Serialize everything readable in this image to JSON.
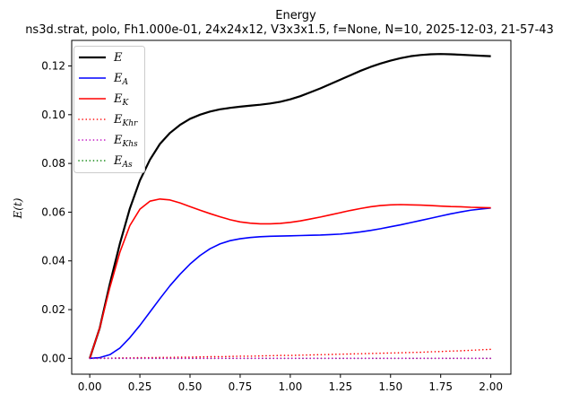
{
  "chart_data": {
    "type": "line",
    "title": "Energy",
    "subtitle": "ns3d.strat, polo, Fh1.000e-01, 24x24x12, V3x3x1.5, f=None, N=10, 2025-12-03, 21-57-43",
    "xlabel": "",
    "ylabel": "E(t)",
    "xlim": [
      -0.09,
      2.1
    ],
    "ylim": [
      -0.0065,
      0.1305
    ],
    "xticks": [
      "0.00",
      "0.25",
      "0.50",
      "0.75",
      "1.00",
      "1.25",
      "1.50",
      "1.75",
      "2.00"
    ],
    "xtick_values": [
      0,
      0.25,
      0.5,
      0.75,
      1.0,
      1.25,
      1.5,
      1.75,
      2.0
    ],
    "yticks": [
      "0.00",
      "0.02",
      "0.04",
      "0.06",
      "0.08",
      "0.10",
      "0.12"
    ],
    "ytick_values": [
      0,
      0.02,
      0.04,
      0.06,
      0.08,
      0.1,
      0.12
    ],
    "grid": false,
    "legend_position": "upper-left",
    "x": [
      0,
      0.05,
      0.1,
      0.15,
      0.2,
      0.25,
      0.3,
      0.35,
      0.4,
      0.45,
      0.5,
      0.55,
      0.6,
      0.65,
      0.7,
      0.75,
      0.8,
      0.85,
      0.9,
      0.95,
      1.0,
      1.05,
      1.1,
      1.15,
      1.2,
      1.25,
      1.3,
      1.35,
      1.4,
      1.45,
      1.5,
      1.55,
      1.6,
      1.65,
      1.7,
      1.75,
      1.8,
      1.85,
      1.9,
      1.95,
      2.0
    ],
    "series": [
      {
        "name": "E",
        "sub": "",
        "color": "#000000",
        "style": "solid",
        "width": 2.2,
        "values": [
          0,
          0.0125,
          0.0305,
          0.047,
          0.0615,
          0.073,
          0.0815,
          0.088,
          0.0925,
          0.0958,
          0.0983,
          0.1,
          0.1013,
          0.1022,
          0.1028,
          0.1033,
          0.1037,
          0.1041,
          0.1046,
          0.1053,
          0.1063,
          0.1076,
          0.1092,
          0.1108,
          0.1126,
          0.1144,
          0.1162,
          0.118,
          0.1196,
          0.121,
          0.1222,
          0.1232,
          0.124,
          0.1245,
          0.1248,
          0.1249,
          0.1248,
          0.1246,
          0.1244,
          0.1242,
          0.124
        ]
      },
      {
        "name": "E",
        "sub": "A",
        "color": "#0000ff",
        "style": "solid",
        "width": 1.6,
        "values": [
          0,
          0.0003,
          0.0015,
          0.0042,
          0.0085,
          0.0135,
          0.019,
          0.0245,
          0.0298,
          0.0345,
          0.0387,
          0.0422,
          0.045,
          0.047,
          0.0483,
          0.0491,
          0.0496,
          0.0499,
          0.0501,
          0.0502,
          0.0503,
          0.0504,
          0.0505,
          0.0506,
          0.0508,
          0.051,
          0.0514,
          0.0519,
          0.0525,
          0.0532,
          0.054,
          0.0548,
          0.0557,
          0.0566,
          0.0575,
          0.0584,
          0.0593,
          0.0601,
          0.0608,
          0.0613,
          0.0617
        ]
      },
      {
        "name": "E",
        "sub": "K",
        "color": "#ff0000",
        "style": "solid",
        "width": 1.6,
        "values": [
          0,
          0.0125,
          0.029,
          0.0435,
          0.0545,
          0.0612,
          0.0645,
          0.0654,
          0.065,
          0.0638,
          0.0623,
          0.0608,
          0.0594,
          0.0581,
          0.0569,
          0.056,
          0.0555,
          0.0552,
          0.0552,
          0.0554,
          0.0558,
          0.0564,
          0.0572,
          0.058,
          0.0589,
          0.0598,
          0.0607,
          0.0615,
          0.0622,
          0.0627,
          0.063,
          0.0631,
          0.063,
          0.0629,
          0.0627,
          0.0625,
          0.0623,
          0.0622,
          0.062,
          0.0619,
          0.0618
        ]
      },
      {
        "name": "E",
        "sub": "Khr",
        "color": "#ff0000",
        "style": "dotted",
        "width": 1.6,
        "values": [
          0,
          0.0001,
          0.0001,
          0.0002,
          0.0002,
          0.0003,
          0.0003,
          0.0004,
          0.0004,
          0.0005,
          0.0005,
          0.0006,
          0.0007,
          0.0007,
          0.0008,
          0.0009,
          0.0009,
          0.001,
          0.0011,
          0.0012,
          0.0012,
          0.0013,
          0.0014,
          0.0015,
          0.0016,
          0.0017,
          0.0018,
          0.0019,
          0.002,
          0.0021,
          0.0022,
          0.0023,
          0.0024,
          0.0025,
          0.0027,
          0.0028,
          0.003,
          0.0031,
          0.0033,
          0.0035,
          0.0037
        ]
      },
      {
        "name": "E",
        "sub": "Khs",
        "color": "#bf00bf",
        "style": "dotted",
        "width": 1.6,
        "values": [
          0,
          0,
          0,
          0,
          0,
          0,
          0,
          0,
          0,
          0,
          0,
          0,
          0,
          0,
          0,
          0,
          0,
          0,
          0,
          0,
          0,
          0,
          0,
          0,
          0,
          0,
          0,
          0,
          0,
          0,
          0,
          0,
          0,
          0,
          0,
          0,
          0,
          0,
          0,
          0,
          0
        ]
      },
      {
        "name": "E",
        "sub": "As",
        "color": "#008000",
        "style": "dotted",
        "width": 1.6,
        "values": [
          0,
          0,
          0,
          0,
          0,
          0,
          0,
          0,
          0,
          0,
          0,
          0,
          0,
          0,
          0,
          0,
          0,
          0,
          0,
          0,
          0,
          0,
          0,
          0,
          0,
          0,
          0,
          0,
          0,
          0,
          0,
          0,
          0,
          0,
          0,
          0,
          0,
          0,
          0,
          0,
          0
        ]
      }
    ]
  }
}
